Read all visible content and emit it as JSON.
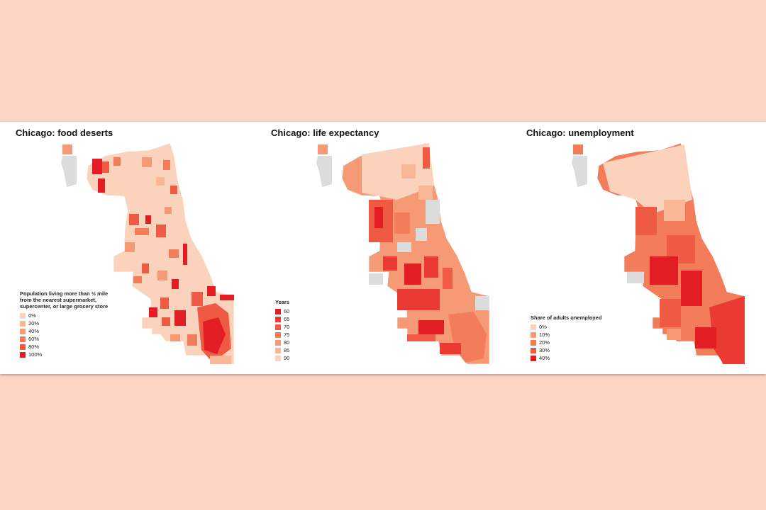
{
  "panels": [
    {
      "title": "Chicago: food deserts",
      "legend_title_lines": [
        "Population living more than ½ mile",
        "from the nearest supermarket,",
        "supercenter, or large grocery store"
      ],
      "legend": [
        {
          "label": "0%",
          "color": "#fbd3bd"
        },
        {
          "label": "20%",
          "color": "#f9b796"
        },
        {
          "label": "40%",
          "color": "#f69a76"
        },
        {
          "label": "60%",
          "color": "#f37c5a"
        },
        {
          "label": "80%",
          "color": "#ee5a44"
        },
        {
          "label": "100%",
          "color": "#e31d24"
        }
      ]
    },
    {
      "title": "Chicago: life expectancy",
      "legend_title_lines": [
        "Years"
      ],
      "legend": [
        {
          "label": "60",
          "color": "#e31d24"
        },
        {
          "label": "65",
          "color": "#ea3a33"
        },
        {
          "label": "70",
          "color": "#ef5b44"
        },
        {
          "label": "75",
          "color": "#f37c5a"
        },
        {
          "label": "80",
          "color": "#f69a76"
        },
        {
          "label": "85",
          "color": "#f9b796"
        },
        {
          "label": "90",
          "color": "#fbd3bd"
        }
      ]
    },
    {
      "title": "Chicago: unemployment",
      "legend_title_lines": [
        "Share of adults unemployed"
      ],
      "legend": [
        {
          "label": "0%",
          "color": "#fbd3bd"
        },
        {
          "label": "10%",
          "color": "#f69a76"
        },
        {
          "label": "20%",
          "color": "#f37c5a"
        },
        {
          "label": "30%",
          "color": "#ee5a44"
        },
        {
          "label": "40%",
          "color": "#e31d24"
        }
      ]
    }
  ],
  "colors": {
    "background": "#fdd5c5",
    "no_data": "#dcdcdc"
  }
}
